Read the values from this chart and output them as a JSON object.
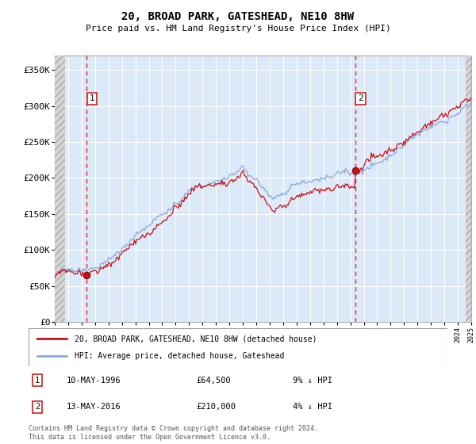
{
  "title": "20, BROAD PARK, GATESHEAD, NE10 8HW",
  "subtitle": "Price paid vs. HM Land Registry's House Price Index (HPI)",
  "sale1_date": "10-MAY-1996",
  "sale1_price": 64500,
  "sale1_pct": "9% ↓ HPI",
  "sale1_label": "1",
  "sale2_date": "13-MAY-2016",
  "sale2_price": 210000,
  "sale2_pct": "4% ↓ HPI",
  "sale2_label": "2",
  "legend_line1": "20, BROAD PARK, GATESHEAD, NE10 8HW (detached house)",
  "legend_line2": "HPI: Average price, detached house, Gateshead",
  "footer": "Contains HM Land Registry data © Crown copyright and database right 2024.\nThis data is licensed under the Open Government Licence v3.0.",
  "ylim": [
    0,
    370000
  ],
  "yticks": [
    0,
    50000,
    100000,
    150000,
    200000,
    250000,
    300000,
    350000
  ],
  "ytick_labels": [
    "£0",
    "£50K",
    "£100K",
    "£150K",
    "£200K",
    "£250K",
    "£300K",
    "£350K"
  ],
  "background_color": "#dce9f8",
  "hatch_color": "#c8c8c8",
  "grid_color": "#ffffff",
  "sale_line_color": "#ff2222",
  "hpi_line_color": "#88aadd",
  "price_line_color": "#cc1111",
  "marker_color": "#cc1111",
  "x_start_year": 1994,
  "x_end_year": 2025,
  "sale1_year": 1996.37,
  "sale2_year": 2016.37,
  "sale1_hpi_price": 70800,
  "sale2_hpi_price": 219000
}
